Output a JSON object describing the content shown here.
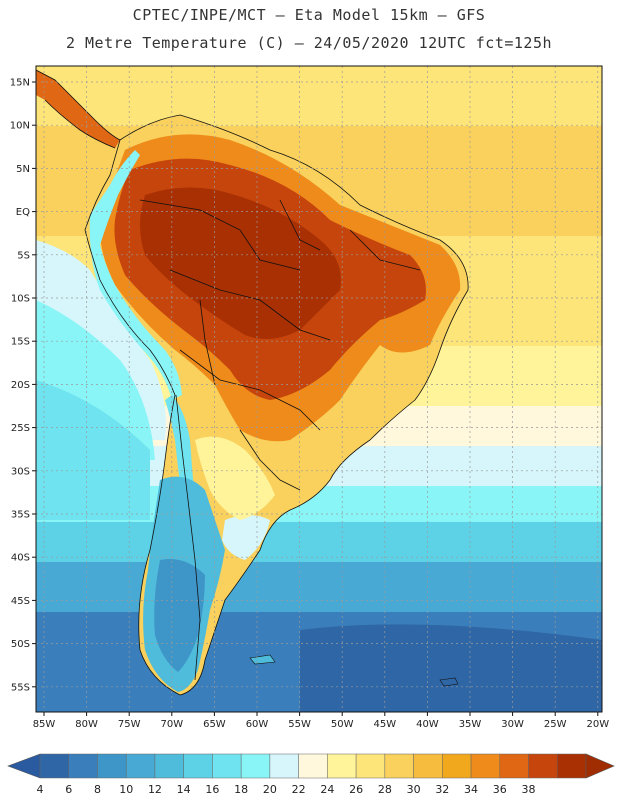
{
  "header": {
    "line1": "CPTEC/INPE/MCT –  Eta Model 15km – GFS",
    "line2": "2 Metre Temperature (C) – 24/05/2020 12UTC fct=125h"
  },
  "map": {
    "variable": "2 Metre Temperature",
    "units": "C",
    "lat_ticks": [
      "15N",
      "10N",
      "5N",
      "EQ",
      "5S",
      "10S",
      "15S",
      "20S",
      "25S",
      "30S",
      "35S",
      "40S",
      "45S",
      "50S",
      "55S"
    ],
    "lon_ticks": [
      "85W",
      "80W",
      "75W",
      "70W",
      "65W",
      "60W",
      "55W",
      "50W",
      "45W",
      "40W",
      "35W",
      "30W",
      "25W",
      "20W"
    ]
  },
  "colorbar": {
    "labels": [
      "4",
      "6",
      "8",
      "10",
      "12",
      "14",
      "16",
      "18",
      "20",
      "22",
      "24",
      "26",
      "28",
      "30",
      "32",
      "34",
      "36",
      "38"
    ],
    "colors": [
      "#2f66a6",
      "#3a7fbb",
      "#3e95c7",
      "#47a9d4",
      "#50bcdb",
      "#5dd1e6",
      "#6fe3ef",
      "#8af5f7",
      "#d6f6fb",
      "#fff8dd",
      "#fff49a",
      "#fde57a",
      "#f9d15c",
      "#f5bc3d",
      "#f2a81c",
      "#ee8b1a",
      "#e06714",
      "#c5450c",
      "#a83003"
    ],
    "low_color": "#2a5aa0",
    "high_color": "#a02c02"
  }
}
